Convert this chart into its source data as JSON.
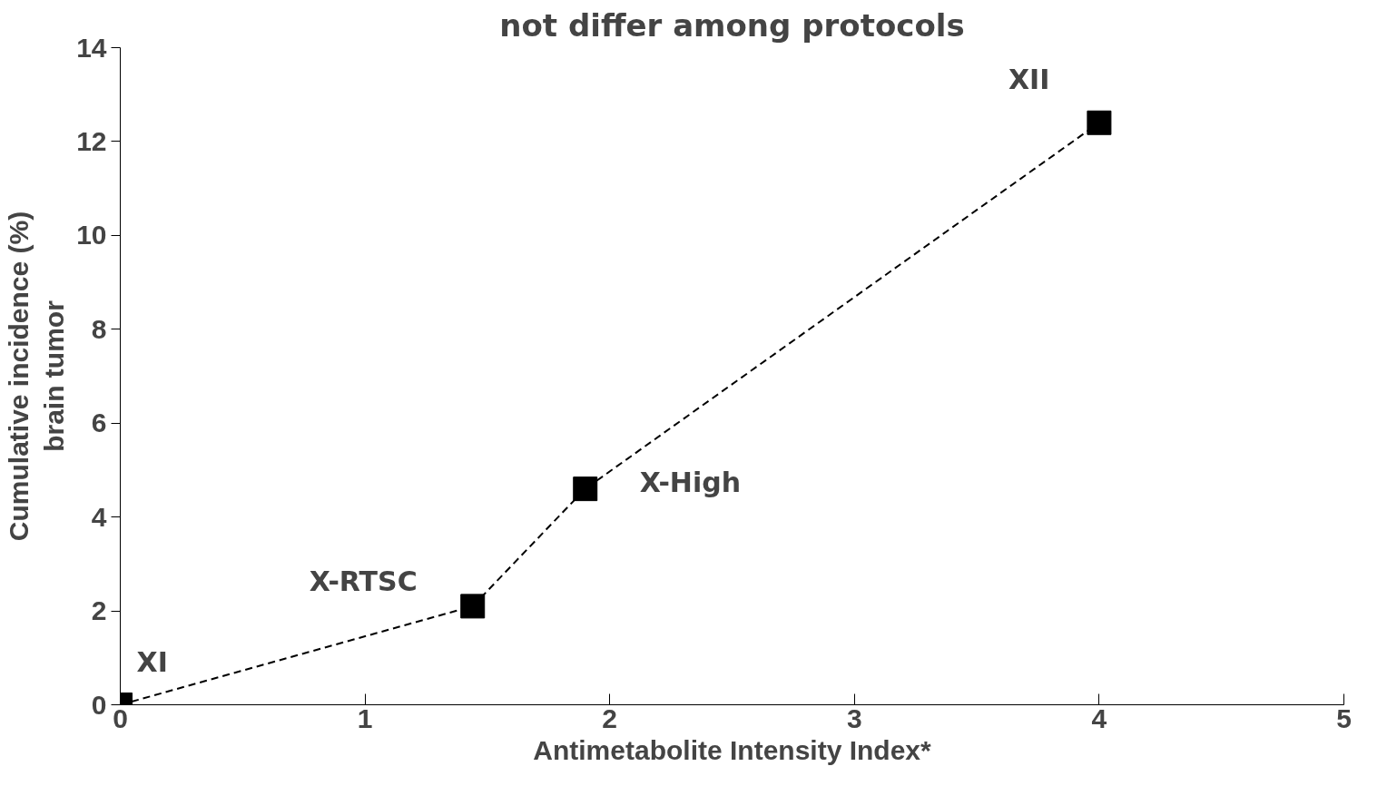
{
  "chart_data": {
    "type": "line",
    "title": "not differ among protocols",
    "xlabel": "Antimetabolite Intensity Index*",
    "ylabel": "Cumulative incidence (%)\nbrain tumor",
    "x": [
      0,
      1.44,
      1.9,
      4.0
    ],
    "series": [
      {
        "color": "#000000",
        "values": [
          0,
          2.1,
          4.6,
          12.4
        ]
      }
    ],
    "xlim": [
      0,
      5
    ],
    "xticks": [
      0,
      1,
      2,
      3,
      4,
      5
    ],
    "ylim": [
      0,
      14
    ],
    "yticks": [
      0,
      2,
      4,
      6,
      8,
      10,
      12,
      14
    ],
    "marker": "square",
    "line_style": "dashed",
    "grid": false,
    "annotations": [
      {
        "text": "XI",
        "x": 0,
        "y": 0
      },
      {
        "text": "X-RTSC",
        "x": 1.44,
        "y": 2.1
      },
      {
        "text": "X-High",
        "x": 1.9,
        "y": 4.6
      },
      {
        "text": "XII",
        "x": 4.0,
        "y": 12.4
      }
    ]
  }
}
